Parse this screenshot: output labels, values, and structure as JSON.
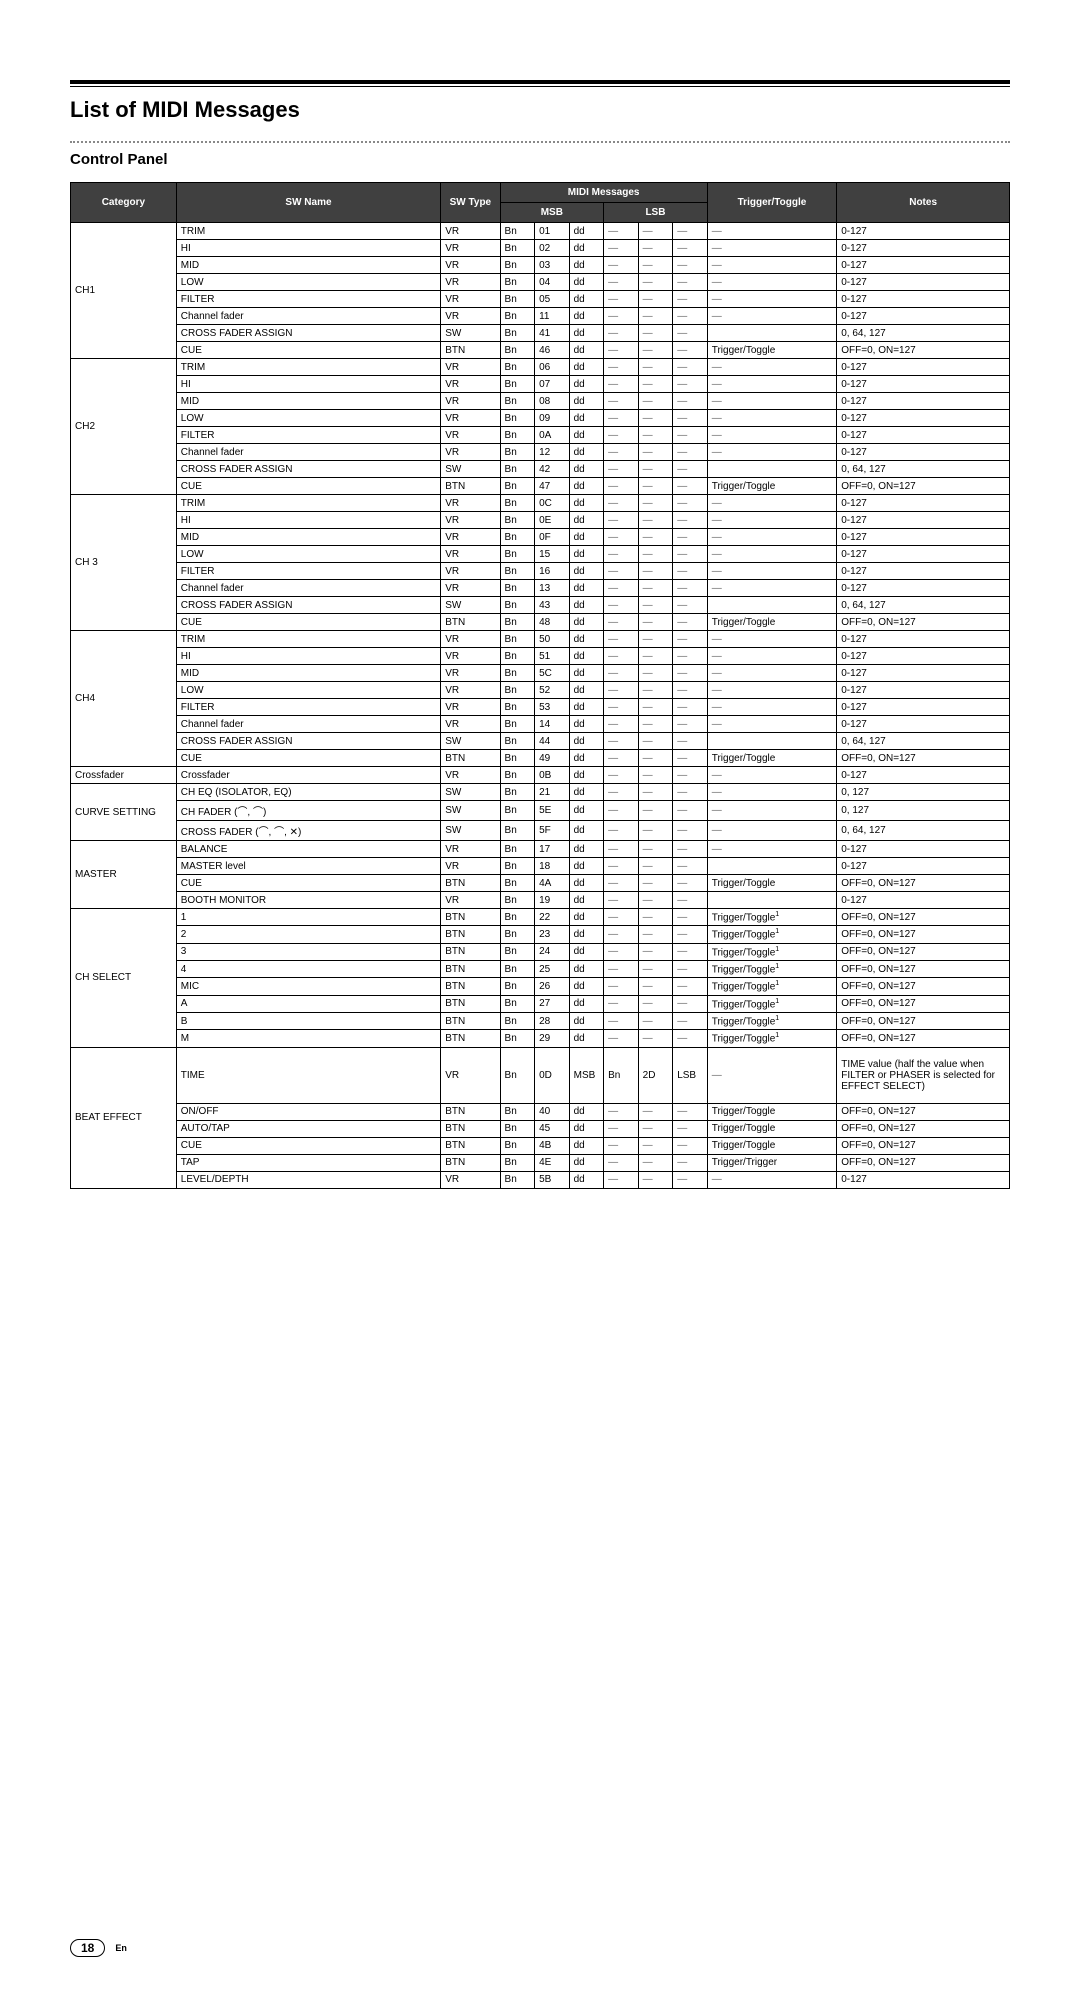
{
  "headings": {
    "h1": "List of MIDI Messages",
    "h2": "Control Panel"
  },
  "headers": {
    "category": "Category",
    "swname": "SW Name",
    "swtype": "SW Type",
    "midi": "MIDI Messages",
    "msb": "MSB",
    "lsb": "LSB",
    "trigger": "Trigger/Toggle",
    "notes": "Notes"
  },
  "dash": "—",
  "groups": [
    {
      "category": "CH1",
      "rows": [
        {
          "name": "TRIM",
          "type": "VR",
          "m": [
            "Bn",
            "01",
            "dd",
            "—",
            "—",
            "—"
          ],
          "trig": "—",
          "notes": "0-127"
        },
        {
          "name": "HI",
          "type": "VR",
          "m": [
            "Bn",
            "02",
            "dd",
            "—",
            "—",
            "—"
          ],
          "trig": "—",
          "notes": "0-127"
        },
        {
          "name": "MID",
          "type": "VR",
          "m": [
            "Bn",
            "03",
            "dd",
            "—",
            "—",
            "—"
          ],
          "trig": "—",
          "notes": "0-127"
        },
        {
          "name": "LOW",
          "type": "VR",
          "m": [
            "Bn",
            "04",
            "dd",
            "—",
            "—",
            "—"
          ],
          "trig": "—",
          "notes": "0-127"
        },
        {
          "name": "FILTER",
          "type": "VR",
          "m": [
            "Bn",
            "05",
            "dd",
            "—",
            "—",
            "—"
          ],
          "trig": "—",
          "notes": "0-127"
        },
        {
          "name": "Channel fader",
          "type": "VR",
          "m": [
            "Bn",
            "11",
            "dd",
            "—",
            "—",
            "—"
          ],
          "trig": "—",
          "notes": "0-127"
        },
        {
          "name": "CROSS FADER ASSIGN",
          "type": "SW",
          "m": [
            "Bn",
            "41",
            "dd",
            "—",
            "—",
            "—"
          ],
          "trig": "",
          "notes": "0, 64, 127"
        },
        {
          "name": "CUE",
          "type": "BTN",
          "m": [
            "Bn",
            "46",
            "dd",
            "—",
            "—",
            "—"
          ],
          "trig": "Trigger/Toggle",
          "notes": "OFF=0, ON=127"
        }
      ]
    },
    {
      "category": "CH2",
      "rows": [
        {
          "name": "TRIM",
          "type": "VR",
          "m": [
            "Bn",
            "06",
            "dd",
            "—",
            "—",
            "—"
          ],
          "trig": "—",
          "notes": "0-127"
        },
        {
          "name": "HI",
          "type": "VR",
          "m": [
            "Bn",
            "07",
            "dd",
            "—",
            "—",
            "—"
          ],
          "trig": "—",
          "notes": "0-127"
        },
        {
          "name": "MID",
          "type": "VR",
          "m": [
            "Bn",
            "08",
            "dd",
            "—",
            "—",
            "—"
          ],
          "trig": "—",
          "notes": "0-127"
        },
        {
          "name": "LOW",
          "type": "VR",
          "m": [
            "Bn",
            "09",
            "dd",
            "—",
            "—",
            "—"
          ],
          "trig": "—",
          "notes": "0-127"
        },
        {
          "name": "FILTER",
          "type": "VR",
          "m": [
            "Bn",
            "0A",
            "dd",
            "—",
            "—",
            "—"
          ],
          "trig": "—",
          "notes": "0-127"
        },
        {
          "name": "Channel fader",
          "type": "VR",
          "m": [
            "Bn",
            "12",
            "dd",
            "—",
            "—",
            "—"
          ],
          "trig": "—",
          "notes": "0-127"
        },
        {
          "name": "CROSS FADER ASSIGN",
          "type": "SW",
          "m": [
            "Bn",
            "42",
            "dd",
            "—",
            "—",
            "—"
          ],
          "trig": "",
          "notes": "0, 64, 127"
        },
        {
          "name": "CUE",
          "type": "BTN",
          "m": [
            "Bn",
            "47",
            "dd",
            "—",
            "—",
            "—"
          ],
          "trig": "Trigger/Toggle",
          "notes": "OFF=0, ON=127"
        }
      ]
    },
    {
      "category": "CH 3",
      "rows": [
        {
          "name": "TRIM",
          "type": "VR",
          "m": [
            "Bn",
            "0C",
            "dd",
            "—",
            "—",
            "—"
          ],
          "trig": "—",
          "notes": "0-127"
        },
        {
          "name": "HI",
          "type": "VR",
          "m": [
            "Bn",
            "0E",
            "dd",
            "—",
            "—",
            "—"
          ],
          "trig": "—",
          "notes": "0-127"
        },
        {
          "name": "MID",
          "type": "VR",
          "m": [
            "Bn",
            "0F",
            "dd",
            "—",
            "—",
            "—"
          ],
          "trig": "—",
          "notes": "0-127"
        },
        {
          "name": "LOW",
          "type": "VR",
          "m": [
            "Bn",
            "15",
            "dd",
            "—",
            "—",
            "—"
          ],
          "trig": "—",
          "notes": "0-127"
        },
        {
          "name": "FILTER",
          "type": "VR",
          "m": [
            "Bn",
            "16",
            "dd",
            "—",
            "—",
            "—"
          ],
          "trig": "—",
          "notes": "0-127"
        },
        {
          "name": "Channel fader",
          "type": "VR",
          "m": [
            "Bn",
            "13",
            "dd",
            "—",
            "—",
            "—"
          ],
          "trig": "—",
          "notes": "0-127"
        },
        {
          "name": "CROSS FADER ASSIGN",
          "type": "SW",
          "m": [
            "Bn",
            "43",
            "dd",
            "—",
            "—",
            "—"
          ],
          "trig": "",
          "notes": "0, 64, 127"
        },
        {
          "name": "CUE",
          "type": "BTN",
          "m": [
            "Bn",
            "48",
            "dd",
            "—",
            "—",
            "—"
          ],
          "trig": "Trigger/Toggle",
          "notes": "OFF=0, ON=127"
        }
      ]
    },
    {
      "category": "CH4",
      "rows": [
        {
          "name": "TRIM",
          "type": "VR",
          "m": [
            "Bn",
            "50",
            "dd",
            "—",
            "—",
            "—"
          ],
          "trig": "—",
          "notes": "0-127"
        },
        {
          "name": "HI",
          "type": "VR",
          "m": [
            "Bn",
            "51",
            "dd",
            "—",
            "—",
            "—"
          ],
          "trig": "—",
          "notes": "0-127"
        },
        {
          "name": "MID",
          "type": "VR",
          "m": [
            "Bn",
            "5C",
            "dd",
            "—",
            "—",
            "—"
          ],
          "trig": "—",
          "notes": "0-127"
        },
        {
          "name": "LOW",
          "type": "VR",
          "m": [
            "Bn",
            "52",
            "dd",
            "—",
            "—",
            "—"
          ],
          "trig": "—",
          "notes": "0-127"
        },
        {
          "name": "FILTER",
          "type": "VR",
          "m": [
            "Bn",
            "53",
            "dd",
            "—",
            "—",
            "—"
          ],
          "trig": "—",
          "notes": "0-127"
        },
        {
          "name": "Channel fader",
          "type": "VR",
          "m": [
            "Bn",
            "14",
            "dd",
            "—",
            "—",
            "—"
          ],
          "trig": "—",
          "notes": "0-127"
        },
        {
          "name": "CROSS FADER ASSIGN",
          "type": "SW",
          "m": [
            "Bn",
            "44",
            "dd",
            "—",
            "—",
            "—"
          ],
          "trig": "",
          "notes": "0, 64, 127"
        },
        {
          "name": "CUE",
          "type": "BTN",
          "m": [
            "Bn",
            "49",
            "dd",
            "—",
            "—",
            "—"
          ],
          "trig": "Trigger/Toggle",
          "notes": "OFF=0, ON=127"
        }
      ]
    },
    {
      "category": "Crossfader",
      "rows": [
        {
          "name": "Crossfader",
          "type": "VR",
          "m": [
            "Bn",
            "0B",
            "dd",
            "—",
            "—",
            "—"
          ],
          "trig": "—",
          "notes": "0-127"
        }
      ]
    },
    {
      "category": "CURVE SETTING",
      "rows": [
        {
          "name": "CH EQ (ISOLATOR, EQ)",
          "type": "SW",
          "m": [
            "Bn",
            "21",
            "dd",
            "—",
            "—",
            "—"
          ],
          "trig": "—",
          "notes": "0, 127"
        },
        {
          "name": "CH FADER (⌒, ⌒)",
          "type": "SW",
          "m": [
            "Bn",
            "5E",
            "dd",
            "—",
            "—",
            "—"
          ],
          "trig": "—",
          "notes": "0, 127"
        },
        {
          "name": "CROSS FADER (⌒, ⌒, ✕)",
          "type": "SW",
          "m": [
            "Bn",
            "5F",
            "dd",
            "—",
            "—",
            "—"
          ],
          "trig": "—",
          "notes": "0, 64, 127"
        }
      ]
    },
    {
      "category": "MASTER",
      "rows": [
        {
          "name": "BALANCE",
          "type": "VR",
          "m": [
            "Bn",
            "17",
            "dd",
            "—",
            "—",
            "—"
          ],
          "trig": "—",
          "notes": "0-127"
        },
        {
          "name": "MASTER level",
          "type": "VR",
          "m": [
            "Bn",
            "18",
            "dd",
            "—",
            "—",
            "—"
          ],
          "trig": "",
          "notes": "0-127"
        },
        {
          "name": "CUE",
          "type": "BTN",
          "m": [
            "Bn",
            "4A",
            "dd",
            "—",
            "—",
            "—"
          ],
          "trig": "Trigger/Toggle",
          "notes": "OFF=0, ON=127"
        },
        {
          "name": "BOOTH MONITOR",
          "type": "VR",
          "m": [
            "Bn",
            "19",
            "dd",
            "—",
            "—",
            "—"
          ],
          "trig": "",
          "notes": "0-127"
        }
      ]
    },
    {
      "category": "CH SELECT",
      "rows": [
        {
          "name": "1",
          "type": "BTN",
          "m": [
            "Bn",
            "22",
            "dd",
            "—",
            "—",
            "—"
          ],
          "trig": "Trigger/Toggle[1]",
          "notes": "OFF=0, ON=127"
        },
        {
          "name": "2",
          "type": "BTN",
          "m": [
            "Bn",
            "23",
            "dd",
            "—",
            "—",
            "—"
          ],
          "trig": "Trigger/Toggle[1]",
          "notes": "OFF=0, ON=127"
        },
        {
          "name": "3",
          "type": "BTN",
          "m": [
            "Bn",
            "24",
            "dd",
            "—",
            "—",
            "—"
          ],
          "trig": "Trigger/Toggle[1]",
          "notes": "OFF=0, ON=127"
        },
        {
          "name": "4",
          "type": "BTN",
          "m": [
            "Bn",
            "25",
            "dd",
            "—",
            "—",
            "—"
          ],
          "trig": "Trigger/Toggle[1]",
          "notes": "OFF=0, ON=127"
        },
        {
          "name": "MIC",
          "type": "BTN",
          "m": [
            "Bn",
            "26",
            "dd",
            "—",
            "—",
            "—"
          ],
          "trig": "Trigger/Toggle[1]",
          "notes": "OFF=0, ON=127"
        },
        {
          "name": "A",
          "type": "BTN",
          "m": [
            "Bn",
            "27",
            "dd",
            "—",
            "—",
            "—"
          ],
          "trig": "Trigger/Toggle[1]",
          "notes": "OFF=0, ON=127"
        },
        {
          "name": "B",
          "type": "BTN",
          "m": [
            "Bn",
            "28",
            "dd",
            "—",
            "—",
            "—"
          ],
          "trig": "Trigger/Toggle[1]",
          "notes": "OFF=0, ON=127"
        },
        {
          "name": "M",
          "type": "BTN",
          "m": [
            "Bn",
            "29",
            "dd",
            "—",
            "—",
            "—"
          ],
          "trig": "Trigger/Toggle[1]",
          "notes": "OFF=0, ON=127"
        }
      ]
    },
    {
      "category": "BEAT EFFECT",
      "rows": [
        {
          "name": "TIME",
          "type": "VR",
          "m": [
            "Bn",
            "0D",
            "MSB",
            "Bn",
            "2D",
            "LSB"
          ],
          "trig": "—",
          "notes": "TIME value (half the value when FILTER or PHASER is selected for EFFECT SELECT)",
          "wrap": true,
          "tall": true
        },
        {
          "name": "ON/OFF",
          "type": "BTN",
          "m": [
            "Bn",
            "40",
            "dd",
            "—",
            "—",
            "—"
          ],
          "trig": "Trigger/Toggle",
          "notes": "OFF=0, ON=127"
        },
        {
          "name": "AUTO/TAP",
          "type": "BTN",
          "m": [
            "Bn",
            "45",
            "dd",
            "—",
            "—",
            "—"
          ],
          "trig": "Trigger/Toggle",
          "notes": "OFF=0, ON=127"
        },
        {
          "name": "CUE",
          "type": "BTN",
          "m": [
            "Bn",
            "4B",
            "dd",
            "—",
            "—",
            "—"
          ],
          "trig": "Trigger/Toggle",
          "notes": "OFF=0, ON=127"
        },
        {
          "name": "TAP",
          "type": "BTN",
          "m": [
            "Bn",
            "4E",
            "dd",
            "—",
            "—",
            "—"
          ],
          "trig": "Trigger/Trigger",
          "notes": "OFF=0, ON=127"
        },
        {
          "name": "LEVEL/DEPTH",
          "type": "VR",
          "m": [
            "Bn",
            "5B",
            "dd",
            "—",
            "—",
            "—"
          ],
          "trig": "—",
          "notes": "0-127"
        }
      ]
    }
  ],
  "footer": {
    "page": "18",
    "lang": "En"
  }
}
